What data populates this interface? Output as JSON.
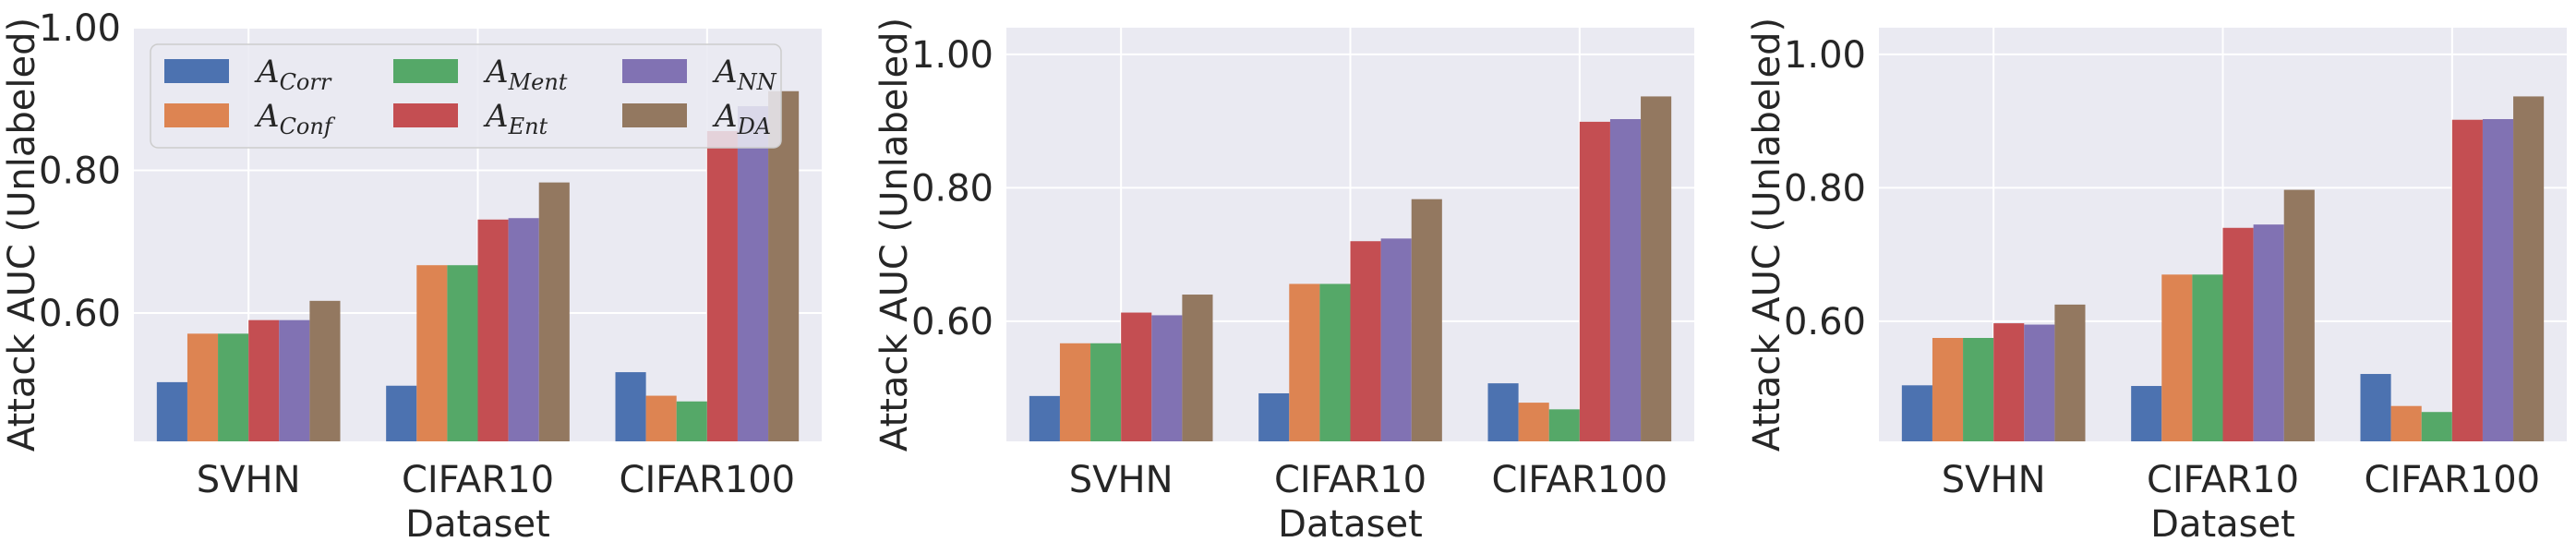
{
  "colors": {
    "plot_bg": "#eaeaf2",
    "grid": "#ffffff",
    "series": [
      "#4c72b0",
      "#dd8452",
      "#55a868",
      "#c44e52",
      "#8172b3",
      "#937860"
    ]
  },
  "legend": {
    "entries": [
      {
        "base": "A",
        "sub": "Corr"
      },
      {
        "base": "A",
        "sub": "Conf"
      },
      {
        "base": "A",
        "sub": "Ment"
      },
      {
        "base": "A",
        "sub": "Ent"
      },
      {
        "base": "A",
        "sub": "NN"
      },
      {
        "base": "A",
        "sub": "DA"
      }
    ]
  },
  "chart_data": [
    {
      "type": "bar",
      "title": "",
      "xlabel": "Dataset",
      "ylabel": "Attack AUC (Unlabeled)",
      "ylim": [
        0.42,
        1.0
      ],
      "yticks": [
        "0.60",
        "0.80",
        "1.00"
      ],
      "categories": [
        "SVHN",
        "CIFAR10",
        "CIFAR100"
      ],
      "legend_position": "top-left",
      "series": [
        {
          "name": "A_Corr",
          "values": [
            0.503,
            0.498,
            0.517
          ]
        },
        {
          "name": "A_Conf",
          "values": [
            0.571,
            0.667,
            0.484
          ]
        },
        {
          "name": "A_Ment",
          "values": [
            0.571,
            0.667,
            0.476
          ]
        },
        {
          "name": "A_Ent",
          "values": [
            0.59,
            0.731,
            0.855
          ]
        },
        {
          "name": "A_NN",
          "values": [
            0.59,
            0.733,
            0.89
          ]
        },
        {
          "name": "A_DA",
          "values": [
            0.617,
            0.783,
            0.911
          ]
        }
      ]
    },
    {
      "type": "bar",
      "title": "",
      "xlabel": "Dataset",
      "ylabel": "Attack AUC (Unlabeled)",
      "ylim": [
        0.42,
        1.04
      ],
      "yticks": [
        "0.60",
        "0.80",
        "1.00"
      ],
      "categories": [
        "SVHN",
        "CIFAR10",
        "CIFAR100"
      ],
      "series": [
        {
          "name": "A_Corr",
          "values": [
            0.488,
            0.492,
            0.507
          ]
        },
        {
          "name": "A_Conf",
          "values": [
            0.567,
            0.656,
            0.478
          ]
        },
        {
          "name": "A_Ment",
          "values": [
            0.567,
            0.656,
            0.468
          ]
        },
        {
          "name": "A_Ent",
          "values": [
            0.613,
            0.72,
            0.899
          ]
        },
        {
          "name": "A_NN",
          "values": [
            0.609,
            0.724,
            0.903
          ]
        },
        {
          "name": "A_DA",
          "values": [
            0.64,
            0.783,
            0.937
          ]
        }
      ]
    },
    {
      "type": "bar",
      "title": "",
      "xlabel": "Dataset",
      "ylabel": "Attack AUC (Unlabeled)",
      "ylim": [
        0.42,
        1.04
      ],
      "yticks": [
        "0.60",
        "0.80",
        "1.00"
      ],
      "categories": [
        "SVHN",
        "CIFAR10",
        "CIFAR100"
      ],
      "series": [
        {
          "name": "A_Corr",
          "values": [
            0.504,
            0.503,
            0.521
          ]
        },
        {
          "name": "A_Conf",
          "values": [
            0.575,
            0.67,
            0.473
          ]
        },
        {
          "name": "A_Ment",
          "values": [
            0.575,
            0.67,
            0.464
          ]
        },
        {
          "name": "A_Ent",
          "values": [
            0.597,
            0.74,
            0.902
          ]
        },
        {
          "name": "A_NN",
          "values": [
            0.595,
            0.745,
            0.903
          ]
        },
        {
          "name": "A_DA",
          "values": [
            0.625,
            0.797,
            0.937
          ]
        }
      ]
    }
  ]
}
